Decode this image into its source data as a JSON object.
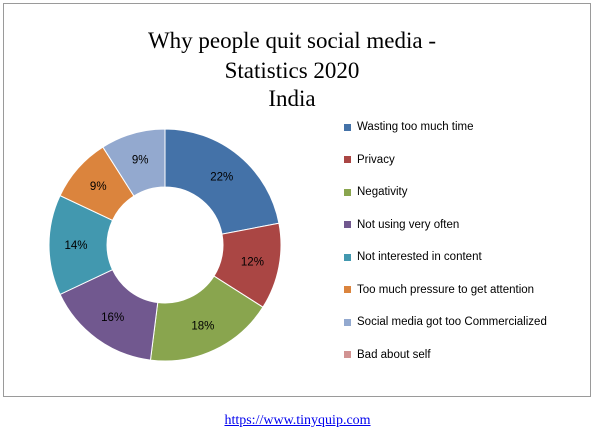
{
  "chart_data": {
    "type": "pie",
    "donut": true,
    "title": "Why people quit social media - Statistics 2020 India",
    "title_lines": [
      "Why people quit social media -",
      "Statistics 2020",
      "India"
    ],
    "categories": [
      "Wasting too much time",
      "Privacy",
      "Negativity",
      "Not using very often",
      "Not interested in content",
      "Too much pressure to get attention",
      "Social media got too Commercialized",
      "Bad about self"
    ],
    "values": [
      22,
      12,
      18,
      16,
      14,
      9,
      9,
      0
    ],
    "data_labels": [
      "22%",
      "12%",
      "18%",
      "16%",
      "14%",
      "9%",
      "9%",
      ""
    ],
    "colors": [
      "#4472A8",
      "#AA4644",
      "#89A54E",
      "#71588F",
      "#4298AF",
      "#DB843D",
      "#93A9CF",
      "#D19392"
    ],
    "legend_position": "right"
  },
  "footer": {
    "link_text": "https://www.tinyquip.com"
  }
}
